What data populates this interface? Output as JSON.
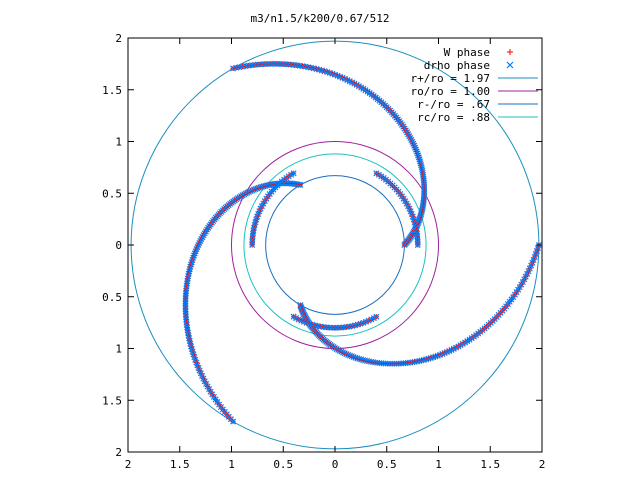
{
  "chart_data": {
    "type": "scatter",
    "title": "m3/n1.5/k200/0.67/512",
    "xlim": [
      2,
      -2
    ],
    "ylim": [
      -2,
      2
    ],
    "x_ticks": [
      {
        "value": 2,
        "label": "2"
      },
      {
        "value": 1.5,
        "label": "1.5"
      },
      {
        "value": 1,
        "label": "1"
      },
      {
        "value": 0.5,
        "label": "0.5"
      },
      {
        "value": 0,
        "label": "0"
      },
      {
        "value": -0.5,
        "label": "0.5"
      },
      {
        "value": -1,
        "label": "1"
      },
      {
        "value": -1.5,
        "label": "1.5"
      },
      {
        "value": -2,
        "label": "2"
      }
    ],
    "y_ticks": [
      {
        "value": 2,
        "label": "2"
      },
      {
        "value": 1.5,
        "label": "1.5"
      },
      {
        "value": 1,
        "label": "1"
      },
      {
        "value": 0.5,
        "label": "0.5"
      },
      {
        "value": 0,
        "label": "0"
      },
      {
        "value": -0.5,
        "label": "0.5"
      },
      {
        "value": -1,
        "label": "1"
      },
      {
        "value": -1.5,
        "label": "1.5"
      },
      {
        "value": -2,
        "label": "2"
      }
    ],
    "grid": false,
    "legend_position": "top-right",
    "legend": [
      {
        "label": "W phase",
        "kind": "plus",
        "color": "#ff0000"
      },
      {
        "label": "drho phase",
        "kind": "cross",
        "color": "#0080ff"
      },
      {
        "label": "r+/ro = 1.97",
        "kind": "line",
        "color": "#1a8fbf"
      },
      {
        "label": "ro/ro = 1.00",
        "kind": "line",
        "color": "#a020a0"
      },
      {
        "label": "r-/ro = .67",
        "kind": "line",
        "color": "#1a6fbf"
      },
      {
        "label": "rc/ro = .88",
        "kind": "line",
        "color": "#20c0c0"
      }
    ],
    "circles": [
      {
        "name": "r+/ro = 1.97",
        "radius": 1.97,
        "color": "#1a8fbf"
      },
      {
        "name": "ro/ro = 1.00",
        "radius": 1.0,
        "color": "#a020a0"
      },
      {
        "name": "r-/ro = .67",
        "radius": 0.67,
        "color": "#1a6fbf"
      },
      {
        "name": "rc/ro = .88",
        "radius": 0.88,
        "color": "#20c0c0"
      }
    ],
    "spiral_arms": [
      {
        "r_start": 0.67,
        "r_end": 1.97,
        "theta_start_deg": 180,
        "twist_deg": -120
      },
      {
        "r_start": 0.67,
        "r_end": 1.97,
        "theta_start_deg": 60,
        "twist_deg": -120
      },
      {
        "r_start": 0.67,
        "r_end": 1.97,
        "theta_start_deg": -60,
        "twist_deg": -120
      }
    ],
    "inner_hooks": [
      {
        "center": [
          1.0,
          0.0
        ],
        "extent_deg": [
          0,
          60
        ]
      },
      {
        "center": [
          -0.5,
          0.87
        ],
        "extent_deg": [
          120,
          180
        ]
      },
      {
        "center": [
          -0.5,
          -0.87
        ],
        "extent_deg": [
          240,
          300
        ]
      }
    ],
    "marker_colors": {
      "w_phase": "#ff0000",
      "drho_phase": "#0080ff"
    }
  }
}
